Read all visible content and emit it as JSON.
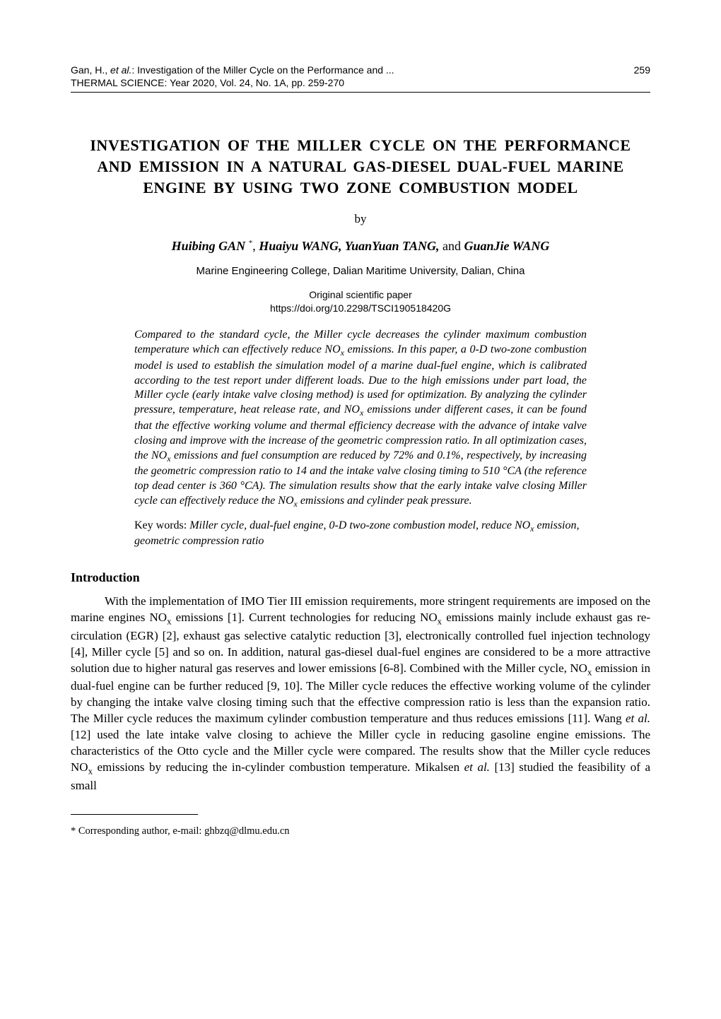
{
  "header": {
    "author_short": "Gan, H., ",
    "et_al": "et al.",
    "article_short": ": Investigation of the Miller Cycle on the Performance and ...",
    "journal": "THERMAL SCIENCE",
    "issue": ": Year 2020, Vol. 24, No. 1A, pp. 259-270",
    "page_number": "259"
  },
  "title": "INVESTIGATION OF THE MILLER CYCLE ON THE PERFORMANCE AND EMISSION IN A NATURAL GAS-DIESEL DUAL-FUEL MARINE ENGINE BY USING TWO ZONE COMBUSTION MODEL",
  "by": "by",
  "authors": {
    "a1_first": "Huibing",
    "a1_last": " GAN ",
    "a1_mark": "*",
    "sep1": ", ",
    "a2_first": "Huaiyu",
    "a2_last": " WANG, ",
    "a3_first": "YuanYuan",
    "a3_last": " TANG, ",
    "and": "and ",
    "a4_first": "GuanJie",
    "a4_last": " WANG"
  },
  "affiliation": "Marine Engineering College, Dalian Maritime University, Dalian, China",
  "paper_type_line1": "Original scientific paper",
  "paper_type_line2": "https://doi.org/10.2298/TSCI190518420G",
  "abstract": {
    "p1": "Compared to the standard cycle, the Miller cycle decreases the cylinder maximum combustion temperature which can effectively reduce NO",
    "p1b": " emissions. In this paper, a 0-D two-zone combustion model is used to establish the simulation model of a marine dual-fuel engine, which is calibrated according to the test report under different loads. Due to the high emissions under part load, the Miller cycle (early intake valve closing method) is used for optimization. By analyzing the cylinder pressure, temperature, heat release rate, and NO",
    "p1c": " emissions under different cases, it can be found that the effective working volume and thermal efficiency decrease with the advance of intake valve closing and improve with the increase of the geometric compression ratio. In all optimization cases, the NO",
    "p1d": " emissions and fuel consumption are reduced by 72% and 0.1%, respectively, by increasing the geometric compression ratio to 14 and the intake valve closing timing to 510 °CA (the reference top dead center is 360 °CA). The simulation results show that the early intake valve closing Miller cycle can effectively reduce the NO",
    "p1e": " emissions and cylinder peak pressure.",
    "sub": "x"
  },
  "keywords": {
    "label": "Key words: ",
    "text_a": "Miller cycle, dual-fuel engine, 0-D two-zone combustion model, reduce NO",
    "sub": "x",
    "text_b": " emission, geometric compression ratio"
  },
  "sections": {
    "intro_heading": "Introduction",
    "intro": {
      "t1": "With the implementation of IMO Tier III emission requirements, more stringent requirements are imposed on the marine engines NO",
      "t2": " emissions [1]. Current technologies for reducing NO",
      "t3": " emissions mainly include exhaust gas re-circulation (EGR) [2], exhaust gas selective catalytic reduction [3], electronically controlled fuel injection technology [4], Miller cycle [5] and so on. In addition, natural gas-diesel dual-fuel engines are considered to be a more attractive solution due to higher natural gas reserves and lower emissions [6-8]. Combined with the Miller cycle, NO",
      "t4": " emission in dual-fuel engine can be further reduced [9, 10]. The Miller cycle reduces the effective working volume of the cylinder by changing the intake valve closing timing such that the effective compression ratio is less than the expansion ratio. The Miller cycle reduces the maximum cylinder combustion temperature and thus reduces emissions [11]. Wang ",
      "t4i": "et al.",
      "t5": " [12] used the late intake valve closing to achieve the Miller cycle in reducing gasoline engine emissions. The characteristics of the Otto cycle and the Miller cycle were compared. The results show that the Miller cycle reduces NO",
      "t6": " emissions by reducing the in-cylinder combustion temperature. Mikalsen ",
      "t6i": "et al.",
      "t7": " [13] studied the feasibility of a small",
      "sub": "x"
    }
  },
  "footnote": "* Corresponding author, e-mail: ghbzq@dlmu.edu.cn"
}
